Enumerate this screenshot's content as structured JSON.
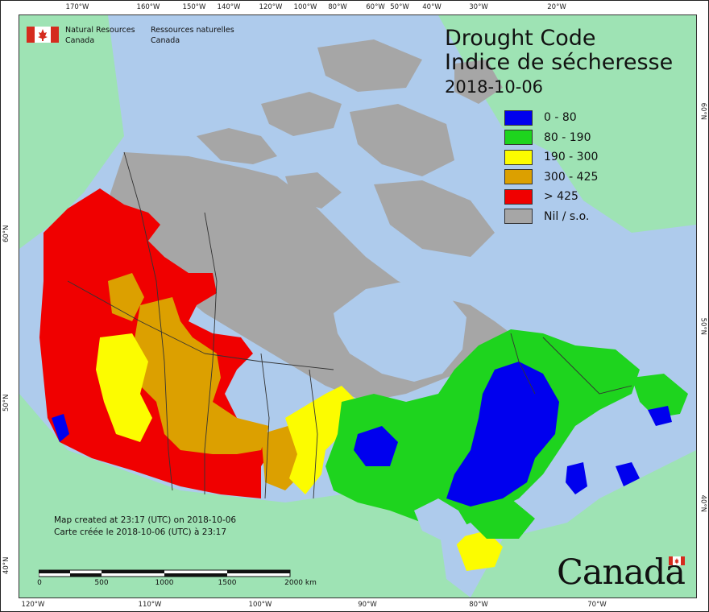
{
  "map": {
    "title_en": "Drought Code",
    "title_fr": "Indice de sécheresse",
    "date": "2018-10-06",
    "agency_en": [
      "Natural Resources",
      "Canada"
    ],
    "agency_fr": [
      "Ressources naturelles",
      "Canada"
    ],
    "legend": [
      {
        "label": "0 - 80",
        "color": "#0000ee"
      },
      {
        "label": "80 - 190",
        "color": "#1ed41e"
      },
      {
        "label": "190 - 300",
        "color": "#fcfc00"
      },
      {
        "label": "300 - 425",
        "color": "#dca000"
      },
      {
        "label": "> 425",
        "color": "#f00000"
      },
      {
        "label": "Nil / s.o.",
        "color": "#a6a6a6"
      }
    ],
    "credit_en": "Map created at 23:17 (UTC) on 2018-10-06",
    "credit_fr": "Carte créée le 2018-10-06 (UTC) à 23:17",
    "scale_labels": [
      "0",
      "500",
      "1000",
      "1500",
      "2000 km"
    ],
    "wordmark": "Canada",
    "ticks": {
      "top": [
        "170°W",
        "160°W",
        "150°W",
        "140°W",
        "120°W",
        "100°W",
        "80°W",
        "60°W",
        "50°W",
        "40°W",
        "30°W",
        "20°W"
      ],
      "bottom": [
        "120°W",
        "110°W",
        "100°W",
        "90°W",
        "80°W",
        "70°W"
      ],
      "left": [
        "60°N",
        "50°N",
        "40°N"
      ],
      "right": [
        "60°N",
        "50°N",
        "40°N"
      ]
    },
    "colors": {
      "water": "#aecbec",
      "land_outside": "#9ee3b4",
      "no_data": "#a6a6a6"
    }
  }
}
